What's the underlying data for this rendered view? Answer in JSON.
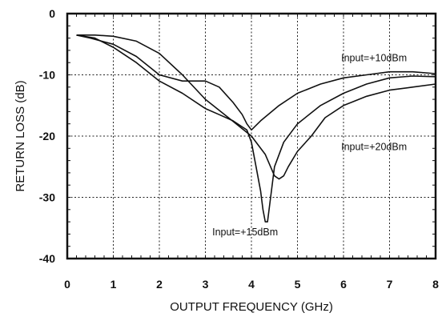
{
  "chart_data": {
    "type": "line",
    "title": "",
    "xlabel": "OUTPUT FREQUENCY (GHz)",
    "ylabel": "RETURN LOSS (dB)",
    "xlim": [
      0,
      8
    ],
    "ylim": [
      -40,
      0
    ],
    "xticks": [
      "0",
      "1",
      "2",
      "3",
      "4",
      "5",
      "6",
      "7",
      "8"
    ],
    "yticks": [
      "0",
      "-10",
      "-20",
      "-30",
      "-40"
    ],
    "grid": true,
    "legend": "none",
    "series": [
      {
        "name": "Input=+10dBm",
        "x": [
          0.2,
          0.5,
          1.0,
          1.5,
          2.0,
          2.5,
          3.0,
          3.3,
          3.6,
          3.8,
          3.9,
          4.0,
          4.2,
          4.6,
          5.0,
          5.5,
          6.0,
          6.5,
          7.0,
          7.5,
          8.0
        ],
        "y": [
          -3.5,
          -4,
          -5,
          -7,
          -10,
          -11,
          -11,
          -12,
          -14.5,
          -16.5,
          -18,
          -19,
          -17.5,
          -15,
          -13,
          -11.5,
          -10.5,
          -10,
          -9.5,
          -9.5,
          -9.8
        ]
      },
      {
        "name": "Input=+15dBm",
        "x": [
          0.2,
          0.6,
          1.0,
          1.5,
          2.0,
          2.5,
          3.0,
          3.3,
          3.6,
          3.8,
          3.9,
          4.0,
          4.1,
          4.2,
          4.25,
          4.3,
          4.35,
          4.4,
          4.5,
          4.7,
          5.0,
          5.5,
          6.0,
          6.5,
          7.0,
          7.5,
          8.0
        ],
        "y": [
          -3.5,
          -4,
          -5.5,
          -8,
          -11,
          -13,
          -15.5,
          -16.5,
          -17.5,
          -18.5,
          -19,
          -21,
          -25,
          -29,
          -32,
          -34,
          -34,
          -31,
          -25,
          -21,
          -18,
          -15,
          -13,
          -11.5,
          -10.5,
          -10.2,
          -10.3
        ]
      },
      {
        "name": "Input=+20dBm",
        "x": [
          0.2,
          0.6,
          1.0,
          1.5,
          2.0,
          2.5,
          3.0,
          3.5,
          4.0,
          4.3,
          4.5,
          4.6,
          4.7,
          4.8,
          5.0,
          5.3,
          5.6,
          6.0,
          6.5,
          7.0,
          7.5,
          8.0
        ],
        "y": [
          -3.5,
          -3.5,
          -3.7,
          -4.5,
          -6.5,
          -10,
          -14,
          -17,
          -20,
          -23,
          -26.5,
          -27,
          -26.5,
          -25,
          -22.5,
          -20,
          -17,
          -15,
          -13.5,
          -12.5,
          -12,
          -11.5
        ]
      }
    ],
    "annotations": [
      {
        "text": "Input=+10dBm",
        "x": 5.95,
        "y": -7.8
      },
      {
        "text": "Input=+20dBm",
        "x": 5.95,
        "y": -22.3
      },
      {
        "text": "Input=+15dBm",
        "x": 3.15,
        "y": -36.2
      }
    ]
  }
}
